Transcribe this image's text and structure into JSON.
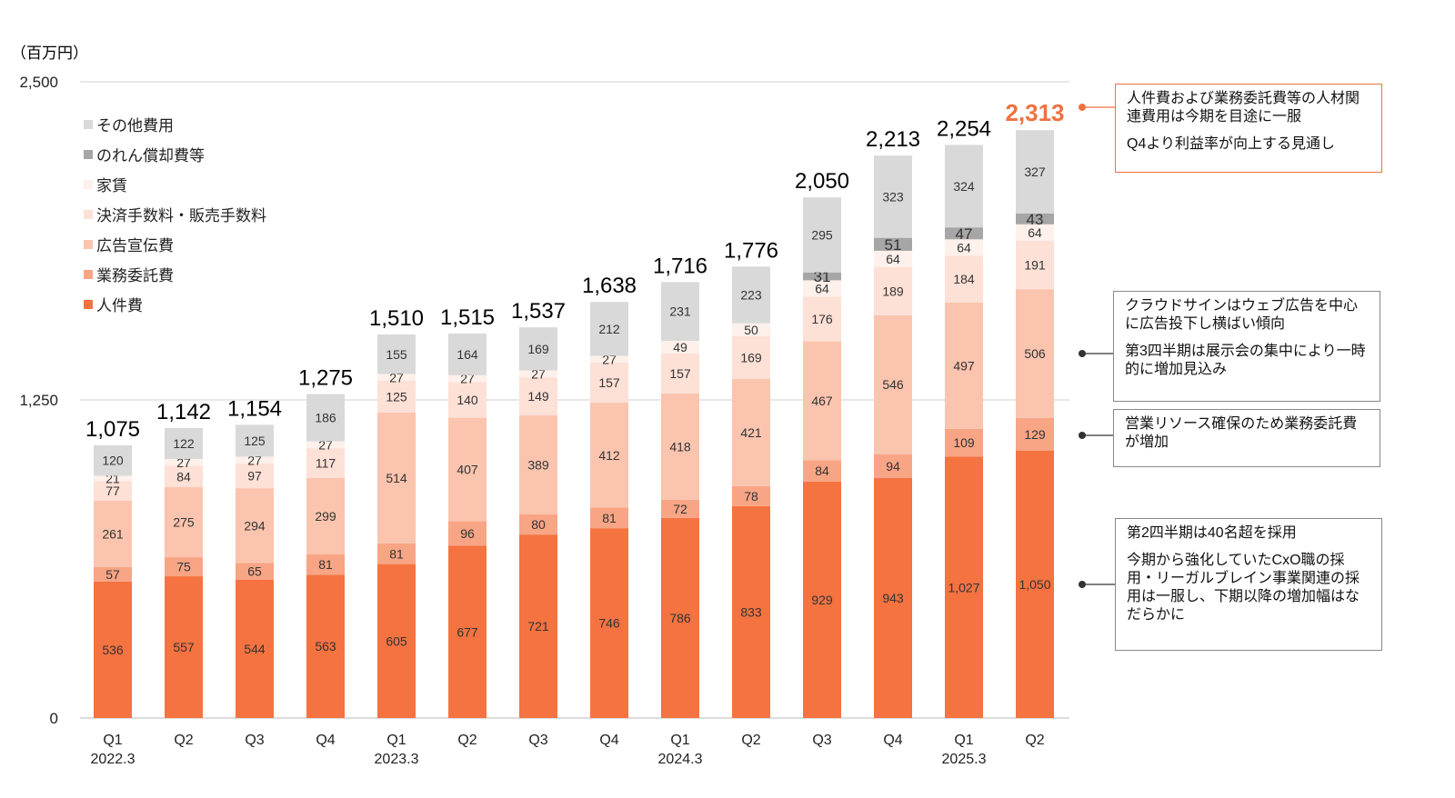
{
  "chart_data": {
    "type": "bar",
    "stacked": true,
    "unit_label": "（百万円）",
    "ylim": [
      0,
      2500
    ],
    "yticks": [
      "0",
      "1,250",
      "2,500"
    ],
    "ytick_values": [
      0,
      1250,
      2500
    ],
    "grid": true,
    "legend_position": "top-left",
    "categories": [
      "Q1",
      "Q2",
      "Q3",
      "Q4",
      "Q1",
      "Q2",
      "Q3",
      "Q4",
      "Q1",
      "Q2",
      "Q3",
      "Q4",
      "Q1",
      "Q2"
    ],
    "category_years": [
      "2022.3",
      "",
      "",
      "",
      "2023.3",
      "",
      "",
      "",
      "2024.3",
      "",
      "",
      "",
      "2025.3",
      ""
    ],
    "totals": [
      "1,075",
      "1,142",
      "1,154",
      "1,275",
      "1,510",
      "1,515",
      "1,537",
      "1,638",
      "1,716",
      "1,776",
      "2,050",
      "2,213",
      "2,254",
      "2,313"
    ],
    "highlight_last_total": true,
    "series": [
      {
        "name": "人件費",
        "color": "#f47340",
        "values": [
          536,
          557,
          544,
          563,
          605,
          677,
          721,
          746,
          786,
          833,
          929,
          943,
          1027,
          1050
        ]
      },
      {
        "name": "業務委託費",
        "color": "#f8a585",
        "values": [
          57,
          75,
          65,
          81,
          81,
          96,
          80,
          81,
          72,
          78,
          84,
          94,
          109,
          129
        ]
      },
      {
        "name": "広告宣伝費",
        "color": "#fbc4ae",
        "values": [
          261,
          275,
          294,
          299,
          514,
          407,
          389,
          412,
          418,
          421,
          467,
          546,
          497,
          506
        ]
      },
      {
        "name": "決済手数料・販売手数料",
        "color": "#fde0d6",
        "values": [
          77,
          84,
          97,
          117,
          125,
          140,
          149,
          157,
          157,
          169,
          176,
          189,
          184,
          191
        ]
      },
      {
        "name": "家賃",
        "color": "#fef0ea",
        "values": [
          21,
          27,
          27,
          27,
          27,
          27,
          27,
          27,
          49,
          50,
          64,
          64,
          64,
          64
        ]
      },
      {
        "name": "のれん償却費等",
        "color": "#a6a6a6",
        "values": [
          0,
          0,
          0,
          0,
          0,
          0,
          0,
          0,
          0,
          0,
          31,
          51,
          47,
          43
        ]
      },
      {
        "name": "その他費用",
        "color": "#d9d9d9",
        "values": [
          120,
          122,
          125,
          186,
          155,
          164,
          169,
          212,
          231,
          223,
          295,
          323,
          324,
          327
        ]
      }
    ],
    "legend_order": [
      "その他費用",
      "のれん償却費等",
      "家賃",
      "決済手数料・販売手数料",
      "広告宣伝費",
      "業務委託費",
      "人件費"
    ],
    "accent_color": "#f07140"
  },
  "notes": [
    {
      "style": "orange",
      "lines": [
        "人件費および業務委託費等の人材関連費用は今期を目途に一服",
        "Q4より利益率が向上する見通し"
      ]
    },
    {
      "style": "gray",
      "lines": [
        "クラウドサインはウェブ広告を中心に広告投下し横ばい傾向",
        "第3四半期は展示会の集中により一時的に増加見込み"
      ]
    },
    {
      "style": "gray",
      "lines": [
        "営業リソース確保のため業務委託費が増加"
      ]
    },
    {
      "style": "gray",
      "lines": [
        "第2四半期は40名超を採用",
        "今期から強化していたCxO職の採用・リーガルブレイン事業関連の採用は一服し、下期以降の増加幅はなだらかに"
      ]
    }
  ]
}
